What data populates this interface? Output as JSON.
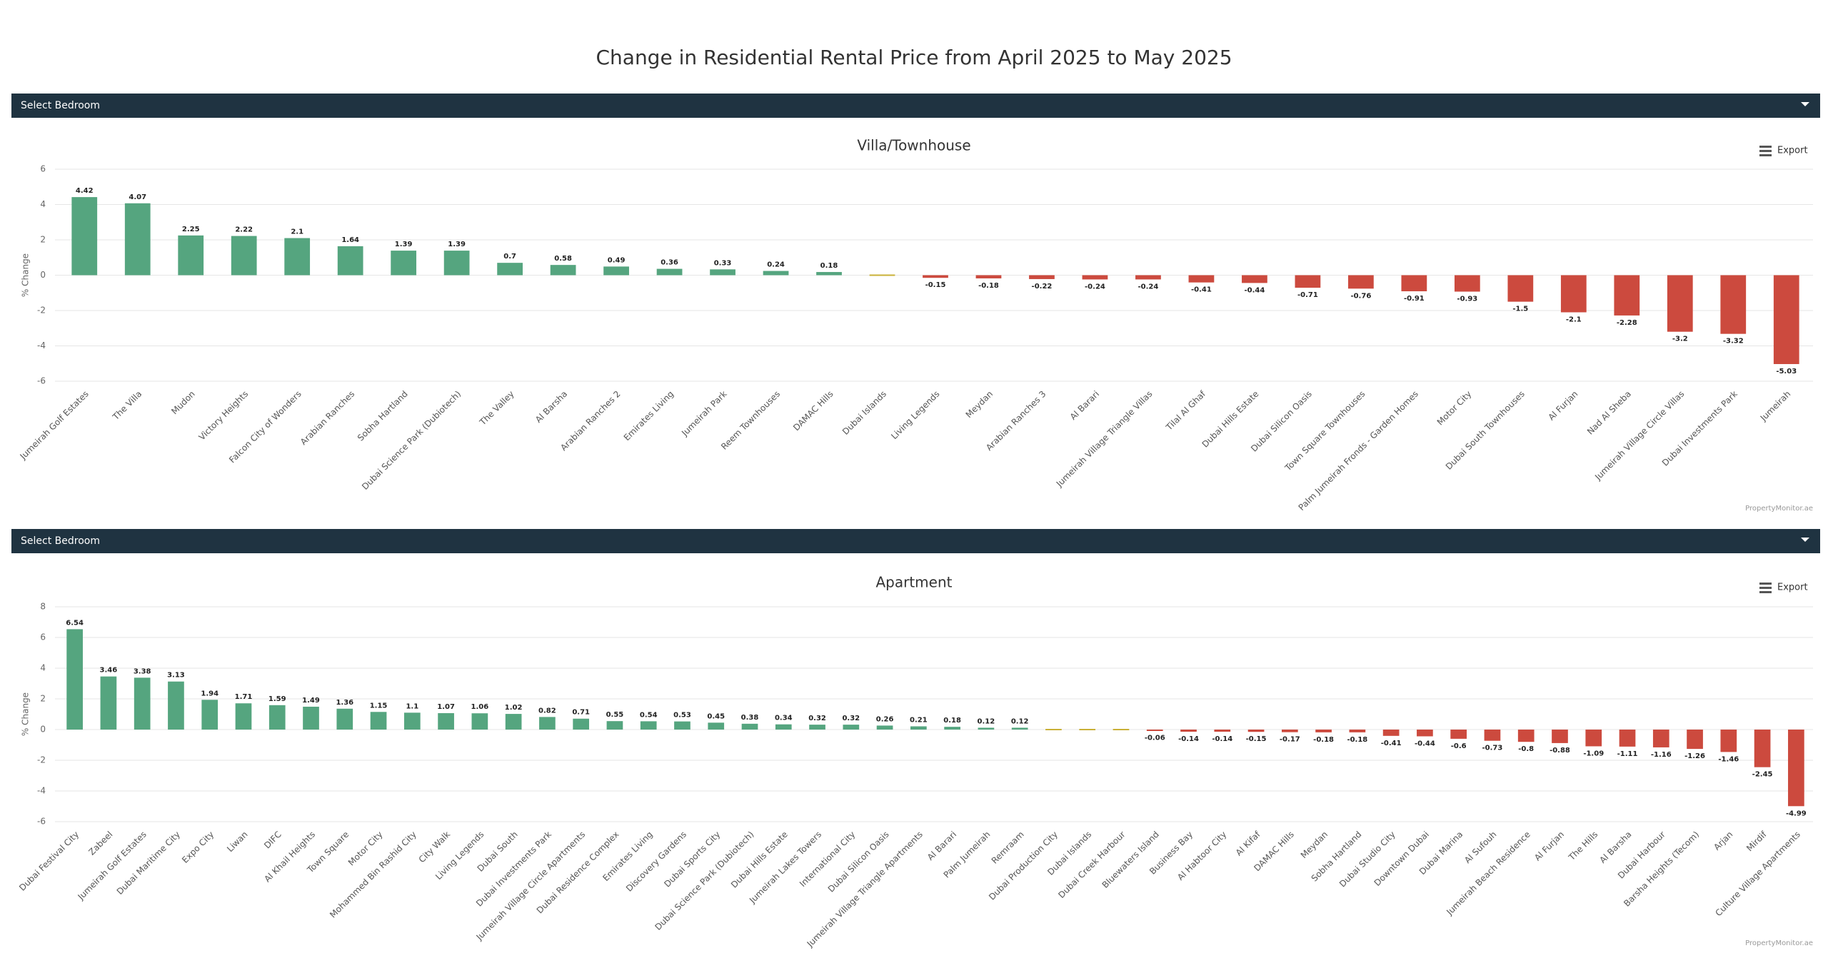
{
  "title": "Change in Residential Rental Price from April 2025 to May 2025",
  "chart_data": [
    {
      "type": "bar",
      "title": "Villa/Townhouse",
      "filter_label": "Select Bedroom",
      "export_label": "Export",
      "credit": "PropertyMonitor.ae",
      "ylabel": "% Change",
      "categories": [
        "Jumeirah Golf Estates",
        "The Villa",
        "Mudon",
        "Victory Heights",
        "Falcon City of Wonders",
        "Arabian Ranches",
        "Sobha Hartland",
        "Dubai Science Park (Dubiotech)",
        "The Valley",
        "Al Barsha",
        "Arabian Ranches 2",
        "Emirates Living",
        "Jumeirah Park",
        "Reem Townhouses",
        "DAMAC Hills",
        "Dubai Islands",
        "Living Legends",
        "Meydan",
        "Arabian Ranches 3",
        "Al Barari",
        "Jumeirah Village Triangle Villas",
        "Tilal Al Ghaf",
        "Dubai Hills Estate",
        "Dubai Silicon Oasis",
        "Town Square Townhouses",
        "Palm Jumeirah Fronds - Garden Homes",
        "Motor City",
        "Dubai South Townhouses",
        "Al Furjan",
        "Nad Al Sheba",
        "Jumeirah Village Circle Villas",
        "Dubai Investments Park",
        "Jumeirah"
      ],
      "values": [
        4.42,
        4.07,
        2.25,
        2.22,
        2.1,
        1.64,
        1.39,
        1.39,
        0.7,
        0.58,
        0.49,
        0.36,
        0.33,
        0.24,
        0.18,
        0,
        -0.15,
        -0.18,
        -0.22,
        -0.24,
        -0.24,
        -0.41,
        -0.44,
        -0.71,
        -0.76,
        -0.91,
        -0.93,
        -1.5,
        -2.1,
        -2.28,
        -3.2,
        -3.32,
        -5.03
      ],
      "colors": {
        "positive": "#55a57f",
        "negative": "#cc4a3e",
        "zero": "#c9b037"
      },
      "ylim": [
        -6,
        6
      ],
      "yticks": [
        -6,
        -4,
        -2,
        0,
        2,
        4,
        6
      ],
      "grid": true
    },
    {
      "type": "bar",
      "title": "Apartment",
      "filter_label": "Select Bedroom",
      "export_label": "Export",
      "credit": "PropertyMonitor.ae",
      "ylabel": "% Change",
      "categories": [
        "Dubai Festival City",
        "Zabeel",
        "Jumeirah Golf Estates",
        "Dubai Maritime City",
        "Expo City",
        "Liwan",
        "DIFC",
        "Al Khail Heights",
        "Town Square",
        "Motor City",
        "Mohammed Bin Rashid City",
        "City Walk",
        "Living Legends",
        "Dubai South",
        "Dubai Investments Park",
        "Jumeirah Village Circle Apartments",
        "Dubai Residence Complex",
        "Emirates Living",
        "Discovery Gardens",
        "Dubai Sports City",
        "Dubai Science Park (Dubiotech)",
        "Dubai Hills Estate",
        "Jumeirah Lakes Towers",
        "International City",
        "Dubai Silicon Oasis",
        "Jumeirah Village Triangle Apartments",
        "Al Barari",
        "Palm Jumeirah",
        "Remraam",
        "Dubai Production City",
        "Dubai Islands",
        "Dubai Creek Harbour",
        "Bluewaters Island",
        "Business Bay",
        "Al Habtoor City",
        "Al Kifaf",
        "DAMAC Hills",
        "Meydan",
        "Sobha Hartland",
        "Dubai Studio City",
        "Downtown Dubai",
        "Dubai Marina",
        "Al Sufouh",
        "Jumeirah Beach Residence",
        "Al Furjan",
        "The Hills",
        "Al Barsha",
        "Dubai Harbour",
        "Barsha Heights (Tecom)",
        "Arjan",
        "Mirdif",
        "Culture Village Apartments"
      ],
      "values": [
        6.54,
        3.46,
        3.38,
        3.13,
        1.94,
        1.71,
        1.59,
        1.49,
        1.36,
        1.15,
        1.1,
        1.07,
        1.06,
        1.02,
        0.82,
        0.71,
        0.55,
        0.54,
        0.53,
        0.45,
        0.38,
        0.34,
        0.32,
        0.32,
        0.26,
        0.21,
        0.18,
        0.12,
        0.12,
        0,
        0,
        0,
        -0.06,
        -0.14,
        -0.14,
        -0.15,
        -0.17,
        -0.18,
        -0.18,
        -0.41,
        -0.44,
        -0.6,
        -0.73,
        -0.8,
        -0.88,
        -1.09,
        -1.11,
        -1.16,
        -1.26,
        -1.46,
        -2.45,
        -4.99
      ],
      "colors": {
        "positive": "#55a57f",
        "negative": "#cc4a3e",
        "zero": "#c9b037"
      },
      "ylim": [
        -6,
        8
      ],
      "yticks": [
        -6,
        -4,
        -2,
        0,
        2,
        4,
        6,
        8
      ],
      "grid": true
    }
  ]
}
